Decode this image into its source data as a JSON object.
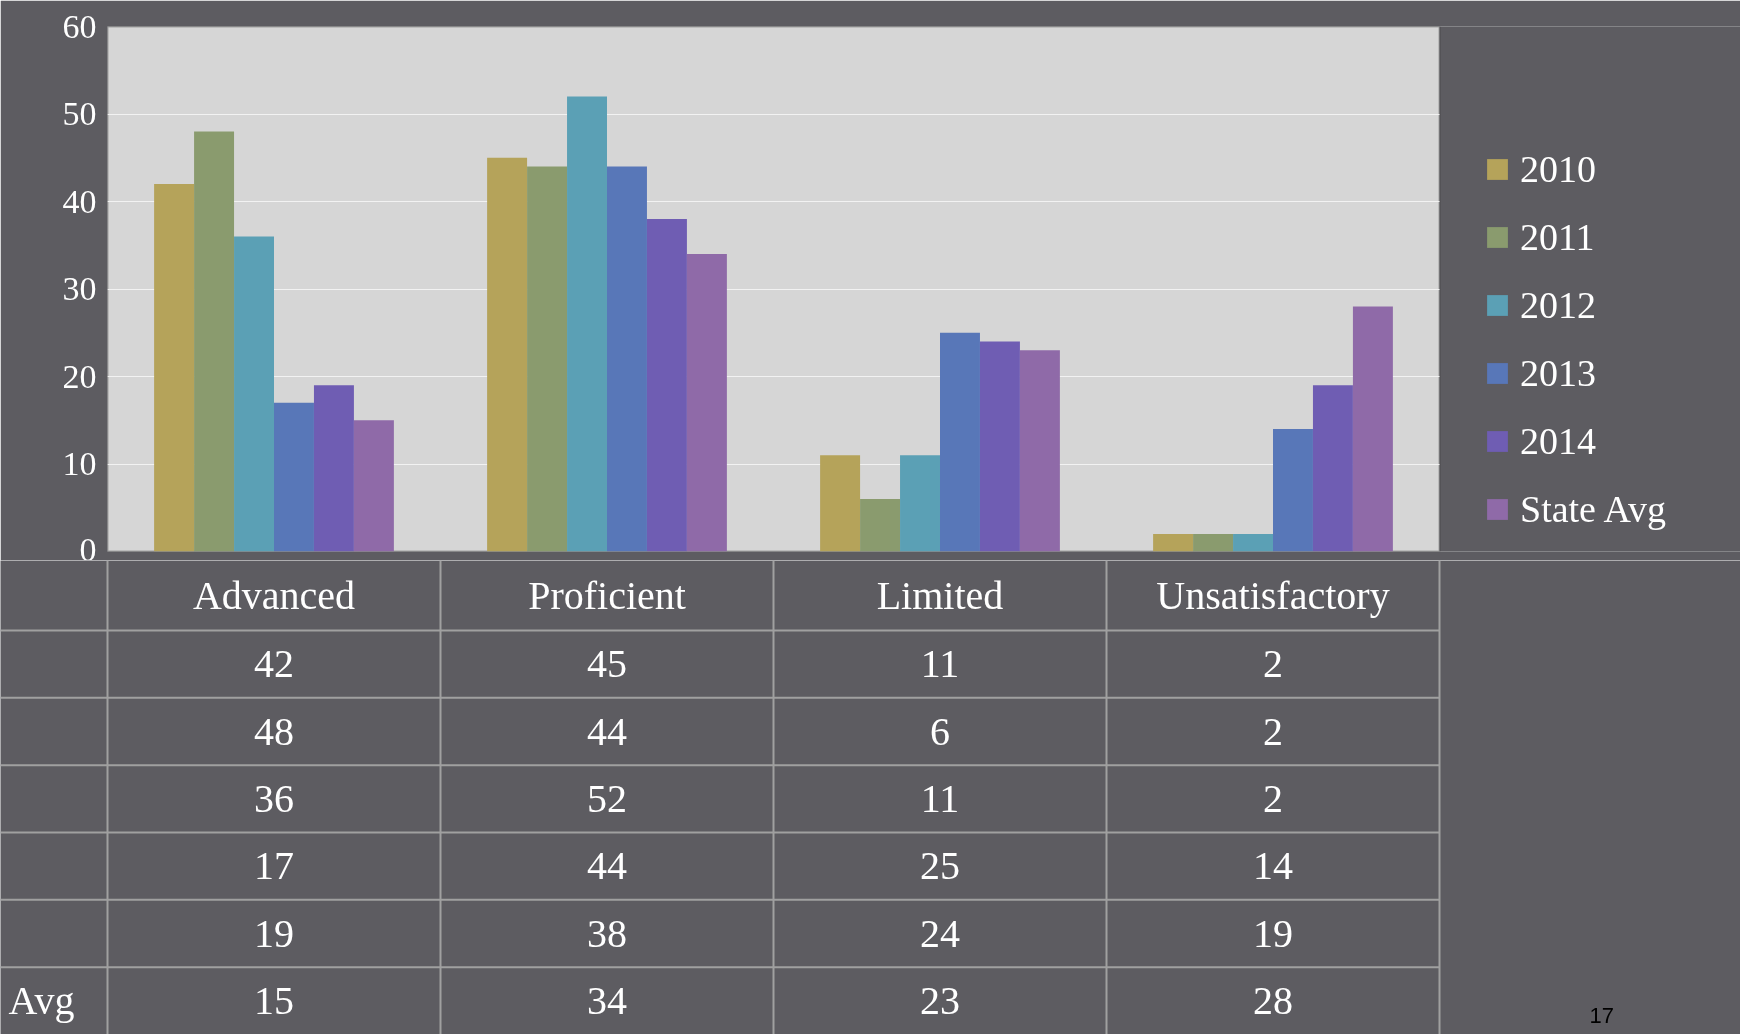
{
  "chart_data": {
    "type": "bar",
    "categories": [
      "Advanced",
      "Proficient",
      "Limited",
      "Unsatisfactory"
    ],
    "series": [
      {
        "name": "2010",
        "color": "#b5a35a",
        "values": [
          42,
          45,
          11,
          2
        ]
      },
      {
        "name": "2011",
        "color": "#8a9b6e",
        "values": [
          48,
          44,
          6,
          2
        ]
      },
      {
        "name": "2012",
        "color": "#5ba0b5",
        "values": [
          36,
          52,
          11,
          2
        ]
      },
      {
        "name": "2013",
        "color": "#5877b8",
        "values": [
          17,
          44,
          25,
          14
        ]
      },
      {
        "name": "2014",
        "color": "#6f5db3",
        "values": [
          19,
          38,
          24,
          19
        ]
      },
      {
        "name": "State Avg",
        "color": "#8f6aa8",
        "values": [
          15,
          34,
          23,
          28
        ]
      }
    ],
    "ylim": [
      0,
      60
    ],
    "yticks": [
      0,
      10,
      20,
      30,
      40,
      50,
      60
    ],
    "grid": "y",
    "legend": "right",
    "data_labels": true,
    "annotations": [
      "Avg",
      "17"
    ]
  }
}
